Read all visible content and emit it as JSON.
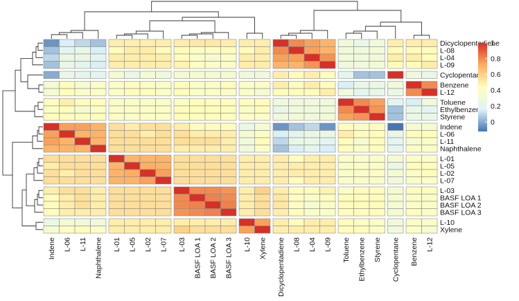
{
  "chart_data": {
    "type": "heatmap",
    "title": "",
    "row_labels": [
      "Dicyclopentadiene",
      "L-08",
      "L-04",
      "L-09",
      "Cyclopentane",
      "Benzene",
      "L-12",
      "Toluene",
      "Ethylbenzene",
      "Styrene",
      "Indene",
      "L-06",
      "L-11",
      "Naphthalene",
      "L-01",
      "L-05",
      "L-02",
      "L-07",
      "L-03",
      "BASF LOA 1",
      "BASF LOA 2",
      "BASF LOA 3",
      "L-10",
      "Xylene"
    ],
    "col_labels": [
      "Indene",
      "L-06",
      "L-11",
      "Naphthalene",
      "L-01",
      "L-05",
      "L-02",
      "L-07",
      "L-03",
      "BASF LOA 1",
      "BASF LOA 2",
      "BASF LOA 3",
      "L-10",
      "Xylene",
      "Dicyclopentadiene",
      "L-08",
      "L-04",
      "L-09",
      "Toluene",
      "Ethylbenzene",
      "Styrene",
      "Cyclopentane",
      "Benzene",
      "L-12"
    ],
    "row_group_sizes": [
      4,
      1,
      2,
      3,
      4,
      4,
      4,
      2
    ],
    "col_group_sizes": [
      4,
      4,
      4,
      2,
      4,
      3,
      1,
      2
    ],
    "legend": {
      "ticks": [
        1,
        0.8,
        0.6,
        0.4,
        0.2,
        0
      ],
      "range": [
        -0.12,
        1.0
      ],
      "colors": [
        "#4575b4",
        "#e0f3f8",
        "#ffffbf",
        "#fdae61",
        "#d73027"
      ]
    },
    "values": [
      [
        -0.05,
        0.15,
        0.1,
        0.05,
        0.5,
        0.5,
        0.5,
        0.5,
        0.5,
        0.52,
        0.52,
        0.5,
        0.5,
        0.5,
        1.0,
        0.8,
        0.75,
        0.7,
        0.3,
        0.25,
        0.3,
        0.5,
        0.5,
        0.5
      ],
      [
        0.05,
        0.2,
        0.25,
        0.15,
        0.45,
        0.5,
        0.5,
        0.45,
        0.45,
        0.42,
        0.42,
        0.45,
        0.45,
        0.5,
        0.8,
        1.0,
        0.75,
        0.7,
        0.3,
        0.3,
        0.32,
        0.45,
        0.45,
        0.45
      ],
      [
        0.1,
        0.25,
        0.25,
        0.2,
        0.5,
        0.5,
        0.5,
        0.5,
        0.45,
        0.4,
        0.35,
        0.4,
        0.5,
        0.5,
        0.75,
        0.75,
        1.0,
        0.78,
        0.3,
        0.3,
        0.3,
        0.5,
        0.5,
        0.45
      ],
      [
        0.05,
        0.25,
        0.2,
        0.15,
        0.5,
        0.5,
        0.5,
        0.5,
        0.48,
        0.42,
        0.4,
        0.4,
        0.5,
        0.5,
        0.7,
        0.7,
        0.78,
        1.0,
        0.3,
        0.3,
        0.32,
        0.45,
        0.45,
        0.5
      ],
      [
        0.0,
        0.25,
        0.2,
        0.2,
        0.35,
        0.25,
        0.35,
        0.3,
        0.35,
        0.35,
        0.35,
        0.35,
        0.3,
        0.3,
        0.5,
        0.45,
        0.5,
        0.45,
        0.2,
        0.05,
        0.05,
        1.0,
        0.3,
        0.25
      ],
      [
        0.35,
        0.45,
        0.35,
        0.4,
        0.4,
        0.45,
        0.4,
        0.4,
        0.45,
        0.4,
        0.4,
        0.45,
        0.4,
        0.4,
        0.5,
        0.45,
        0.5,
        0.45,
        0.15,
        0.25,
        0.25,
        0.3,
        1.0,
        0.8
      ],
      [
        0.35,
        0.45,
        0.4,
        0.4,
        0.4,
        0.45,
        0.45,
        0.4,
        0.45,
        0.4,
        0.4,
        0.4,
        0.4,
        0.35,
        0.45,
        0.45,
        0.45,
        0.5,
        0.3,
        0.2,
        0.25,
        0.25,
        0.8,
        1.0
      ],
      [
        0.45,
        0.5,
        0.45,
        0.45,
        0.4,
        0.4,
        0.4,
        0.4,
        0.4,
        0.45,
        0.45,
        0.45,
        0.45,
        0.45,
        0.3,
        0.3,
        0.3,
        0.3,
        1.0,
        0.8,
        0.75,
        0.2,
        0.15,
        0.3
      ],
      [
        0.4,
        0.45,
        0.35,
        0.4,
        0.4,
        0.4,
        0.4,
        0.4,
        0.45,
        0.45,
        0.45,
        0.45,
        0.4,
        0.45,
        0.25,
        0.3,
        0.3,
        0.3,
        0.8,
        1.0,
        0.78,
        0.05,
        0.25,
        0.2
      ],
      [
        0.45,
        0.45,
        0.45,
        0.45,
        0.4,
        0.4,
        0.4,
        0.4,
        0.45,
        0.45,
        0.45,
        0.45,
        0.4,
        0.4,
        0.3,
        0.32,
        0.3,
        0.32,
        0.75,
        0.78,
        1.0,
        0.05,
        0.25,
        0.25
      ],
      [
        1.0,
        0.75,
        0.75,
        0.7,
        0.55,
        0.5,
        0.55,
        0.55,
        0.5,
        0.45,
        0.45,
        0.45,
        0.25,
        0.35,
        -0.05,
        0.05,
        0.1,
        -0.05,
        0.45,
        0.4,
        0.45,
        -0.12,
        0.35,
        0.35
      ],
      [
        0.75,
        1.0,
        0.7,
        0.7,
        0.55,
        0.55,
        0.5,
        0.55,
        0.55,
        0.5,
        0.5,
        0.5,
        0.35,
        0.4,
        0.15,
        0.2,
        0.25,
        0.25,
        0.5,
        0.45,
        0.45,
        0.25,
        0.45,
        0.45
      ],
      [
        0.75,
        0.7,
        1.0,
        0.7,
        0.55,
        0.55,
        0.55,
        0.55,
        0.55,
        0.55,
        0.55,
        0.5,
        0.3,
        0.45,
        0.1,
        0.25,
        0.25,
        0.2,
        0.45,
        0.35,
        0.45,
        0.2,
        0.35,
        0.4
      ],
      [
        0.7,
        0.7,
        0.7,
        1.0,
        0.55,
        0.55,
        0.55,
        0.55,
        0.5,
        0.5,
        0.5,
        0.5,
        0.3,
        0.4,
        0.05,
        0.15,
        0.2,
        0.15,
        0.45,
        0.4,
        0.45,
        0.2,
        0.4,
        0.4
      ],
      [
        0.55,
        0.55,
        0.55,
        0.55,
        1.0,
        0.7,
        0.7,
        0.7,
        0.55,
        0.55,
        0.55,
        0.55,
        0.5,
        0.5,
        0.5,
        0.45,
        0.5,
        0.5,
        0.4,
        0.4,
        0.4,
        0.35,
        0.4,
        0.4
      ],
      [
        0.5,
        0.55,
        0.55,
        0.55,
        0.7,
        1.0,
        0.72,
        0.7,
        0.55,
        0.55,
        0.55,
        0.55,
        0.5,
        0.5,
        0.5,
        0.5,
        0.5,
        0.5,
        0.4,
        0.4,
        0.4,
        0.25,
        0.45,
        0.45
      ],
      [
        0.55,
        0.5,
        0.55,
        0.55,
        0.7,
        0.72,
        1.0,
        0.75,
        0.55,
        0.55,
        0.55,
        0.55,
        0.5,
        0.5,
        0.5,
        0.5,
        0.5,
        0.5,
        0.4,
        0.4,
        0.4,
        0.35,
        0.4,
        0.45
      ],
      [
        0.55,
        0.55,
        0.55,
        0.55,
        0.7,
        0.7,
        0.75,
        1.0,
        0.55,
        0.55,
        0.55,
        0.55,
        0.5,
        0.5,
        0.5,
        0.45,
        0.5,
        0.5,
        0.4,
        0.4,
        0.4,
        0.3,
        0.4,
        0.4
      ],
      [
        0.5,
        0.55,
        0.55,
        0.5,
        0.55,
        0.55,
        0.55,
        0.55,
        1.0,
        0.8,
        0.8,
        0.78,
        0.5,
        0.6,
        0.5,
        0.45,
        0.45,
        0.48,
        0.4,
        0.45,
        0.45,
        0.35,
        0.45,
        0.45
      ],
      [
        0.45,
        0.5,
        0.55,
        0.5,
        0.55,
        0.55,
        0.55,
        0.55,
        0.8,
        1.0,
        0.82,
        0.8,
        0.5,
        0.55,
        0.52,
        0.42,
        0.4,
        0.42,
        0.45,
        0.45,
        0.45,
        0.35,
        0.4,
        0.4
      ],
      [
        0.45,
        0.5,
        0.55,
        0.5,
        0.55,
        0.55,
        0.55,
        0.55,
        0.8,
        0.82,
        1.0,
        0.82,
        0.5,
        0.55,
        0.52,
        0.42,
        0.35,
        0.4,
        0.45,
        0.45,
        0.45,
        0.35,
        0.4,
        0.4
      ],
      [
        0.45,
        0.5,
        0.5,
        0.5,
        0.55,
        0.55,
        0.55,
        0.55,
        0.78,
        0.8,
        0.82,
        1.0,
        0.5,
        0.55,
        0.5,
        0.45,
        0.4,
        0.4,
        0.45,
        0.45,
        0.45,
        0.35,
        0.45,
        0.4
      ],
      [
        0.25,
        0.35,
        0.3,
        0.3,
        0.5,
        0.5,
        0.5,
        0.5,
        0.5,
        0.5,
        0.5,
        0.5,
        1.0,
        0.75,
        0.5,
        0.45,
        0.5,
        0.5,
        0.45,
        0.4,
        0.4,
        0.3,
        0.4,
        0.4
      ],
      [
        0.35,
        0.4,
        0.45,
        0.4,
        0.5,
        0.5,
        0.5,
        0.5,
        0.6,
        0.55,
        0.55,
        0.55,
        0.75,
        1.0,
        0.5,
        0.5,
        0.5,
        0.5,
        0.45,
        0.45,
        0.4,
        0.3,
        0.4,
        0.35
      ]
    ]
  }
}
